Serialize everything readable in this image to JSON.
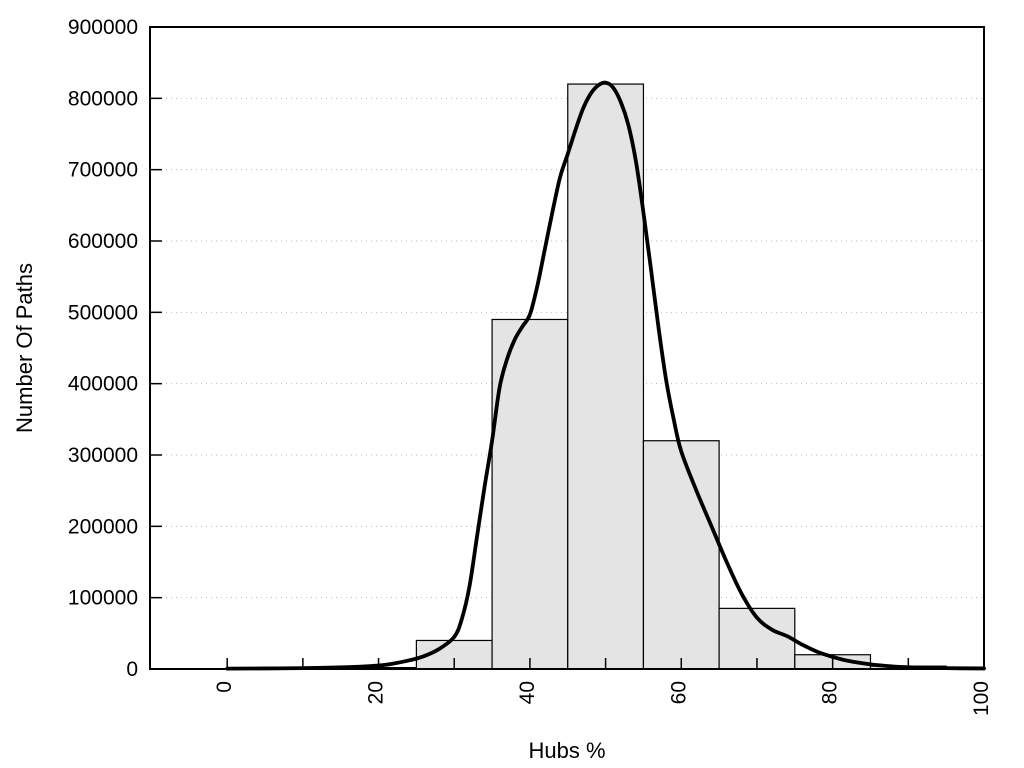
{
  "figure": {
    "background": "#ffffff"
  },
  "chart_data": {
    "type": "bar",
    "subtype": "histogram-with-smoothed-frequency-curve",
    "title": "",
    "xlabel": "Hubs %",
    "ylabel": "Number Of Paths",
    "xlim": [
      -10.2,
      100
    ],
    "ylim": [
      0,
      900000
    ],
    "x_major_ticks": [
      0,
      20,
      40,
      60,
      80,
      100
    ],
    "x_minor_ticks": [
      10,
      30,
      50,
      70,
      90
    ],
    "x_tick_label_rotation": -90,
    "y_ticks": [
      0,
      100000,
      200000,
      300000,
      400000,
      500000,
      600000,
      700000,
      800000,
      900000
    ],
    "grid": {
      "horizontal": true,
      "vertical": false,
      "style": "dotted",
      "color": "#b8b8b8"
    },
    "legend": null,
    "bars": {
      "bin_width": 10,
      "categories": [
        20,
        30,
        40,
        50,
        60,
        70,
        80,
        90
      ],
      "values": [
        2000,
        40000,
        490000,
        820000,
        320000,
        85000,
        20000,
        4000
      ],
      "fill": "#e4e4e4",
      "stroke": "#000000"
    },
    "curve": {
      "name": "smoothed-frequency-curve",
      "color": "#000000",
      "stroke_width": 3.8,
      "points": [
        [
          0,
          500
        ],
        [
          5,
          800
        ],
        [
          10,
          1200
        ],
        [
          14,
          2000
        ],
        [
          18,
          3500
        ],
        [
          21,
          6000
        ],
        [
          24,
          12000
        ],
        [
          26,
          18000
        ],
        [
          28,
          28000
        ],
        [
          30,
          45000
        ],
        [
          31,
          70000
        ],
        [
          32,
          115000
        ],
        [
          33,
          185000
        ],
        [
          34,
          255000
        ],
        [
          35,
          320000
        ],
        [
          36,
          395000
        ],
        [
          37,
          435000
        ],
        [
          38,
          462000
        ],
        [
          39,
          480000
        ],
        [
          40,
          497000
        ],
        [
          41,
          538000
        ],
        [
          42,
          590000
        ],
        [
          43,
          642000
        ],
        [
          44,
          690000
        ],
        [
          45,
          722000
        ],
        [
          46,
          755000
        ],
        [
          47,
          785000
        ],
        [
          48,
          806000
        ],
        [
          49,
          818000
        ],
        [
          50,
          822000
        ],
        [
          51,
          815000
        ],
        [
          52,
          795000
        ],
        [
          53,
          763000
        ],
        [
          54,
          712000
        ],
        [
          55,
          640000
        ],
        [
          56,
          560000
        ],
        [
          57,
          478000
        ],
        [
          58,
          405000
        ],
        [
          59,
          350000
        ],
        [
          60,
          305000
        ],
        [
          62,
          250000
        ],
        [
          64,
          200000
        ],
        [
          66,
          150000
        ],
        [
          68,
          105000
        ],
        [
          70,
          72000
        ],
        [
          72,
          55000
        ],
        [
          74,
          46000
        ],
        [
          76,
          34000
        ],
        [
          78,
          24000
        ],
        [
          80,
          17000
        ],
        [
          82,
          11500
        ],
        [
          85,
          6500
        ],
        [
          88,
          3500
        ],
        [
          90,
          2500
        ],
        [
          95,
          1200
        ],
        [
          100,
          800
        ]
      ]
    }
  }
}
